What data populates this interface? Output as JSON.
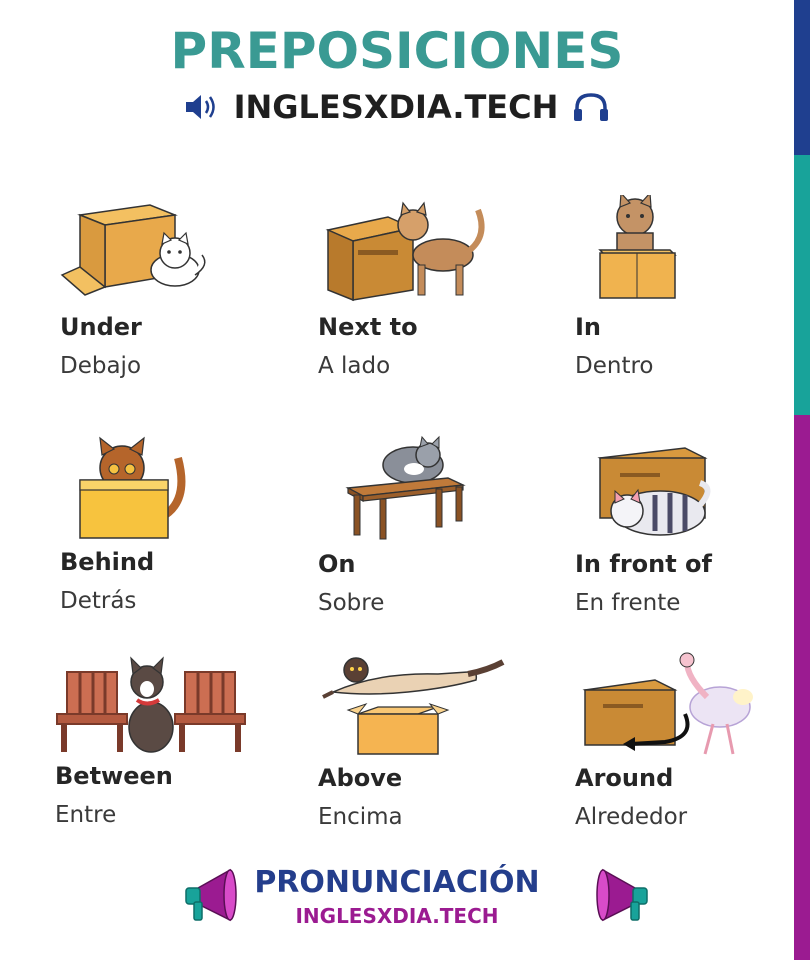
{
  "header": {
    "title": "PREPOSICIONES",
    "site": "INGLESXDIA.TECH",
    "left_icon": "speaker-icon",
    "right_icon": "headphones-icon"
  },
  "colors": {
    "title": "#3a9a93",
    "stripe_top": "#1f3f8f",
    "stripe_middle": "#18a39a",
    "stripe_bottom": "#9b1b91",
    "footer_title": "#243e8c",
    "footer_sub": "#9b1b91"
  },
  "cards": [
    {
      "english": "Under",
      "spanish": "Debajo",
      "illustration": "cat-under-box"
    },
    {
      "english": "Next to",
      "spanish": "A lado",
      "illustration": "cat-next-to-box"
    },
    {
      "english": "In",
      "spanish": "Dentro",
      "illustration": "cat-in-box"
    },
    {
      "english": "Behind",
      "spanish": "Detrás",
      "illustration": "cat-behind-box"
    },
    {
      "english": "On",
      "spanish": "Sobre",
      "illustration": "cat-on-table"
    },
    {
      "english": "In front of",
      "spanish": "En frente",
      "illustration": "cat-in-front-of-box"
    },
    {
      "english": "Between",
      "spanish": "Entre",
      "illustration": "dog-between-chairs"
    },
    {
      "english": "Above",
      "spanish": "Encima",
      "illustration": "cat-above-box"
    },
    {
      "english": "Around",
      "spanish": "Alrededor",
      "illustration": "ostrich-around-box"
    }
  ],
  "footer": {
    "title": "PRONUNCIACIÓN",
    "site": "INGLESXDIA.TECH",
    "icon": "megaphone-icon"
  }
}
